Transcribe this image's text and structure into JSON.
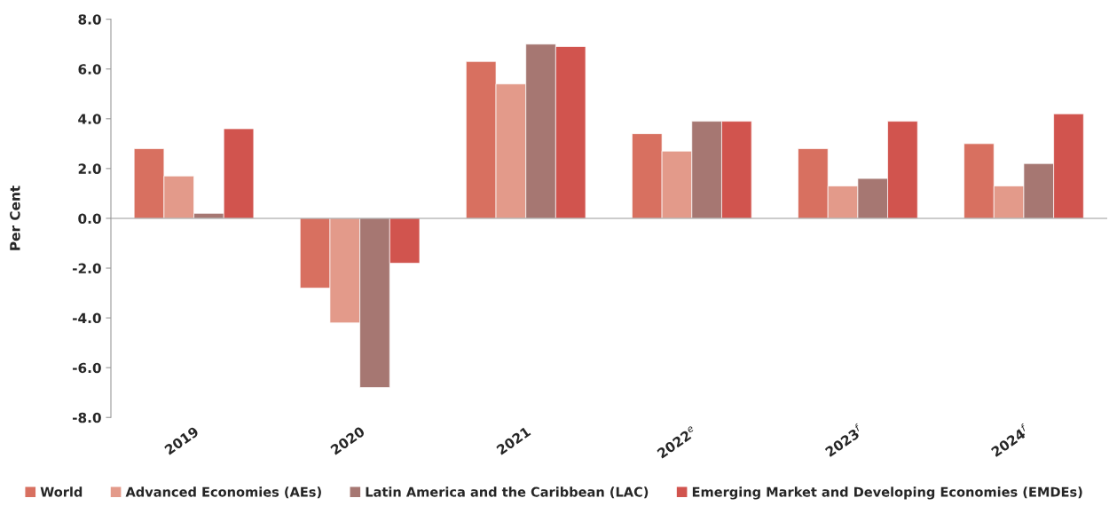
{
  "chart_data": {
    "type": "bar",
    "ylabel": "Per Cent",
    "categories": [
      "2019",
      "2020",
      "2021",
      "2022$^{e}$",
      "2023$^{f}$",
      "2024$^{f}$"
    ],
    "series": [
      {
        "name": "World",
        "color": "#d87060",
        "values": [
          2.8,
          -2.8,
          6.3,
          3.4,
          2.8,
          3.0
        ]
      },
      {
        "name": "Advanced Economies (AEs)",
        "color": "#e39a8a",
        "values": [
          1.7,
          -4.2,
          5.4,
          2.7,
          1.3,
          1.3
        ]
      },
      {
        "name": "Latin America and the Caribbean (LAC)",
        "color": "#a67772",
        "values": [
          0.2,
          -6.8,
          7.0,
          3.9,
          1.6,
          2.2
        ]
      },
      {
        "name": "Emerging Market and Developing Economies (EMDEs)",
        "color": "#d1544e",
        "values": [
          3.6,
          -1.8,
          6.9,
          3.9,
          3.9,
          4.2
        ]
      }
    ],
    "ylim": [
      -8,
      8
    ],
    "yticks": [
      {
        "value": -8,
        "label": "-8.0"
      },
      {
        "value": -6,
        "label": "-6.0"
      },
      {
        "value": -4,
        "label": "-4.0"
      },
      {
        "value": -2,
        "label": "-2.0"
      },
      {
        "value": 0,
        "label": "0.0"
      },
      {
        "value": 2,
        "label": "2.0"
      },
      {
        "value": 4,
        "label": "4.0"
      },
      {
        "value": 6,
        "label": "6.0"
      },
      {
        "value": 8,
        "label": "8.0"
      }
    ],
    "legend": "bottom"
  }
}
